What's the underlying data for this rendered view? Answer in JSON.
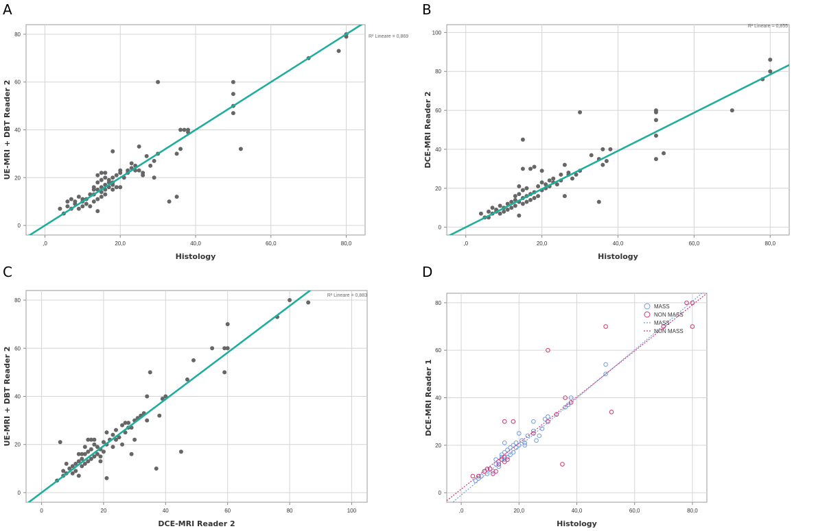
{
  "figure": {
    "panels": [
      "A",
      "B",
      "C",
      "D"
    ]
  },
  "chart_data": [
    {
      "panel": "A",
      "type": "scatter",
      "title": "",
      "xlabel": "Histology",
      "ylabel": "UE-MRI + DBT Reader 2",
      "xlim": [
        -5,
        85
      ],
      "ylim": [
        -4,
        84
      ],
      "xticks": [
        0,
        20,
        40,
        60,
        80
      ],
      "xtick_labels": [
        ",0",
        "20,0",
        "40,0",
        "60,0",
        "80,0"
      ],
      "yticks": [
        0,
        20,
        40,
        60,
        80
      ],
      "ytick_labels": [
        "0",
        "20",
        "40",
        "60",
        "80"
      ],
      "grid": true,
      "r2_label": "R² Lineare = 0,869",
      "marker_color": "#666666",
      "fit": {
        "slope": 1.0,
        "intercept": 0.0,
        "color": "#1fae9c"
      },
      "points": [
        [
          4,
          7
        ],
        [
          5,
          5
        ],
        [
          6,
          8
        ],
        [
          6,
          10
        ],
        [
          7,
          7
        ],
        [
          7,
          11
        ],
        [
          8,
          9
        ],
        [
          8,
          10
        ],
        [
          9,
          7
        ],
        [
          9,
          12
        ],
        [
          10,
          8
        ],
        [
          10,
          10
        ],
        [
          10,
          11
        ],
        [
          11,
          9
        ],
        [
          11,
          11
        ],
        [
          12,
          8
        ],
        [
          12,
          13
        ],
        [
          13,
          10
        ],
        [
          13,
          13
        ],
        [
          13,
          15
        ],
        [
          13,
          16
        ],
        [
          14,
          6
        ],
        [
          14,
          11
        ],
        [
          14,
          15
        ],
        [
          14,
          18
        ],
        [
          14,
          21
        ],
        [
          15,
          12
        ],
        [
          15,
          14
        ],
        [
          15,
          16
        ],
        [
          15,
          19
        ],
        [
          15,
          22
        ],
        [
          16,
          13
        ],
        [
          16,
          15
        ],
        [
          16,
          17
        ],
        [
          16,
          20
        ],
        [
          16,
          22
        ],
        [
          17,
          16
        ],
        [
          17,
          18
        ],
        [
          17,
          19
        ],
        [
          18,
          15
        ],
        [
          18,
          17
        ],
        [
          18,
          18
        ],
        [
          18,
          20
        ],
        [
          18,
          31
        ],
        [
          19,
          16
        ],
        [
          19,
          21
        ],
        [
          20,
          16
        ],
        [
          20,
          22
        ],
        [
          20,
          23
        ],
        [
          21,
          20
        ],
        [
          22,
          22
        ],
        [
          22,
          23
        ],
        [
          23,
          24
        ],
        [
          23,
          26
        ],
        [
          24,
          23
        ],
        [
          24,
          25
        ],
        [
          25,
          23
        ],
        [
          25,
          33
        ],
        [
          26,
          21
        ],
        [
          26,
          22
        ],
        [
          27,
          29
        ],
        [
          28,
          25
        ],
        [
          29,
          20
        ],
        [
          29,
          27
        ],
        [
          30,
          30
        ],
        [
          30,
          60
        ],
        [
          33,
          10
        ],
        [
          35,
          12
        ],
        [
          35,
          30
        ],
        [
          36,
          32
        ],
        [
          36,
          40
        ],
        [
          37,
          40
        ],
        [
          38,
          39
        ],
        [
          38,
          40
        ],
        [
          50,
          47
        ],
        [
          50,
          50
        ],
        [
          50,
          55
        ],
        [
          50,
          60
        ],
        [
          52,
          32
        ],
        [
          70,
          70
        ],
        [
          78,
          73
        ],
        [
          80,
          79
        ],
        [
          80,
          80
        ]
      ]
    },
    {
      "panel": "B",
      "type": "scatter",
      "title": "",
      "xlabel": "Histology",
      "ylabel": "DCE-MRI Reader 2",
      "xlim": [
        -5,
        85
      ],
      "ylim": [
        -4,
        104
      ],
      "xticks": [
        0,
        20,
        40,
        60,
        80
      ],
      "xtick_labels": [
        ",0",
        "20,0",
        "40,0",
        "60,0",
        "80,0"
      ],
      "yticks": [
        0,
        20,
        40,
        60,
        80,
        100
      ],
      "ytick_labels": [
        "0",
        "20",
        "40",
        "60",
        "80",
        "100"
      ],
      "grid": true,
      "r2_label": "R² Lineare = 0,855",
      "marker_color": "#666666",
      "fit": {
        "slope": 0.98,
        "intercept": 0.0,
        "color": "#1fae9c"
      },
      "points": [
        [
          4,
          7
        ],
        [
          5,
          5
        ],
        [
          6,
          5
        ],
        [
          6,
          8
        ],
        [
          7,
          7
        ],
        [
          7,
          10
        ],
        [
          8,
          8
        ],
        [
          8,
          9
        ],
        [
          9,
          7
        ],
        [
          9,
          11
        ],
        [
          10,
          8
        ],
        [
          10,
          10
        ],
        [
          11,
          9
        ],
        [
          11,
          12
        ],
        [
          12,
          10
        ],
        [
          12,
          13
        ],
        [
          13,
          11
        ],
        [
          13,
          14
        ],
        [
          13,
          16
        ],
        [
          14,
          6
        ],
        [
          14,
          13
        ],
        [
          14,
          17
        ],
        [
          14,
          21
        ],
        [
          15,
          12
        ],
        [
          15,
          15
        ],
        [
          15,
          19
        ],
        [
          15,
          30
        ],
        [
          15,
          45
        ],
        [
          16,
          13
        ],
        [
          16,
          16
        ],
        [
          16,
          20
        ],
        [
          17,
          14
        ],
        [
          17,
          17
        ],
        [
          17,
          30
        ],
        [
          18,
          15
        ],
        [
          18,
          18
        ],
        [
          18,
          31
        ],
        [
          19,
          16
        ],
        [
          19,
          21
        ],
        [
          20,
          19
        ],
        [
          20,
          23
        ],
        [
          20,
          29
        ],
        [
          21,
          20
        ],
        [
          21,
          22
        ],
        [
          22,
          21
        ],
        [
          22,
          24
        ],
        [
          23,
          23
        ],
        [
          23,
          25
        ],
        [
          24,
          22
        ],
        [
          25,
          24
        ],
        [
          25,
          27
        ],
        [
          26,
          16
        ],
        [
          26,
          32
        ],
        [
          27,
          27
        ],
        [
          27,
          28
        ],
        [
          28,
          25
        ],
        [
          29,
          27
        ],
        [
          30,
          29
        ],
        [
          30,
          59
        ],
        [
          33,
          37
        ],
        [
          35,
          13
        ],
        [
          35,
          35
        ],
        [
          36,
          32
        ],
        [
          36,
          40
        ],
        [
          37,
          34
        ],
        [
          38,
          40
        ],
        [
          50,
          35
        ],
        [
          50,
          47
        ],
        [
          50,
          55
        ],
        [
          50,
          59
        ],
        [
          50,
          60
        ],
        [
          52,
          38
        ],
        [
          70,
          60
        ],
        [
          78,
          76
        ],
        [
          80,
          80
        ],
        [
          80,
          86
        ]
      ]
    },
    {
      "panel": "C",
      "type": "scatter",
      "title": "",
      "xlabel": "DCE-MRI Reader 2",
      "ylabel": "UE-MRI + DBT Reader 2",
      "xlim": [
        -5,
        105
      ],
      "ylim": [
        -4,
        84
      ],
      "xticks": [
        0,
        20,
        40,
        60,
        80,
        100
      ],
      "xtick_labels": [
        "0",
        "20",
        "40",
        "60",
        "80",
        "100"
      ],
      "yticks": [
        0,
        20,
        40,
        60,
        80
      ],
      "ytick_labels": [
        "0",
        "20",
        "40",
        "60",
        "80"
      ],
      "grid": true,
      "r2_label": "R² Lineare = 0,883",
      "marker_color": "#666666",
      "fit": {
        "slope": 0.97,
        "intercept": 0.0,
        "color": "#1fae9c"
      },
      "points": [
        [
          5,
          5
        ],
        [
          6,
          21
        ],
        [
          7,
          7
        ],
        [
          7,
          9
        ],
        [
          8,
          8
        ],
        [
          8,
          12
        ],
        [
          9,
          10
        ],
        [
          10,
          8
        ],
        [
          10,
          11
        ],
        [
          11,
          9
        ],
        [
          11,
          12
        ],
        [
          12,
          7
        ],
        [
          12,
          13
        ],
        [
          12,
          16
        ],
        [
          13,
          11
        ],
        [
          13,
          14
        ],
        [
          13,
          16
        ],
        [
          14,
          12
        ],
        [
          14,
          16
        ],
        [
          14,
          19
        ],
        [
          15,
          13
        ],
        [
          15,
          17
        ],
        [
          15,
          22
        ],
        [
          16,
          14
        ],
        [
          16,
          18
        ],
        [
          16,
          22
        ],
        [
          17,
          15
        ],
        [
          17,
          20
        ],
        [
          17,
          22
        ],
        [
          18,
          16
        ],
        [
          18,
          19
        ],
        [
          19,
          13
        ],
        [
          19,
          15
        ],
        [
          19,
          18
        ],
        [
          20,
          17
        ],
        [
          20,
          21
        ],
        [
          21,
          6
        ],
        [
          21,
          20
        ],
        [
          21,
          25
        ],
        [
          22,
          22
        ],
        [
          23,
          19
        ],
        [
          23,
          24
        ],
        [
          24,
          22
        ],
        [
          24,
          26
        ],
        [
          25,
          23
        ],
        [
          26,
          20
        ],
        [
          26,
          28
        ],
        [
          27,
          25
        ],
        [
          27,
          29
        ],
        [
          28,
          27
        ],
        [
          28,
          29
        ],
        [
          29,
          16
        ],
        [
          29,
          27
        ],
        [
          30,
          22
        ],
        [
          30,
          30
        ],
        [
          31,
          31
        ],
        [
          32,
          32
        ],
        [
          33,
          33
        ],
        [
          34,
          30
        ],
        [
          34,
          40
        ],
        [
          35,
          50
        ],
        [
          37,
          10
        ],
        [
          38,
          32
        ],
        [
          39,
          39
        ],
        [
          40,
          40
        ],
        [
          45,
          17
        ],
        [
          47,
          47
        ],
        [
          49,
          55
        ],
        [
          55,
          60
        ],
        [
          59,
          50
        ],
        [
          59,
          60
        ],
        [
          60,
          60
        ],
        [
          60,
          70
        ],
        [
          76,
          73
        ],
        [
          80,
          80
        ],
        [
          86,
          79
        ]
      ]
    },
    {
      "panel": "D",
      "type": "scatter",
      "title": "",
      "xlabel": "Histology",
      "ylabel": "DCE-MRI Reader 1",
      "xlim": [
        -5,
        85
      ],
      "ylim": [
        -4,
        84
      ],
      "xticks": [
        0,
        20,
        40,
        60,
        80
      ],
      "xtick_labels": [
        ",0",
        "20,0",
        "40,0",
        "60,0",
        "80,0"
      ],
      "yticks": [
        0,
        20,
        40,
        60,
        80
      ],
      "ytick_labels": [
        "0",
        "20",
        "40",
        "60",
        "80"
      ],
      "grid": true,
      "legend_position": "top-right",
      "series": [
        {
          "name": "MASS",
          "kind": "points",
          "color": "#6f9be0",
          "points": [
            [
              5,
              5
            ],
            [
              6,
              6
            ],
            [
              7,
              7
            ],
            [
              8,
              9
            ],
            [
              9,
              8
            ],
            [
              10,
              10
            ],
            [
              11,
              9
            ],
            [
              12,
              12
            ],
            [
              12,
              14
            ],
            [
              13,
              11
            ],
            [
              13,
              13
            ],
            [
              14,
              15
            ],
            [
              14,
              16
            ],
            [
              15,
              14
            ],
            [
              15,
              17
            ],
            [
              15,
              21
            ],
            [
              16,
              15
            ],
            [
              16,
              18
            ],
            [
              17,
              16
            ],
            [
              17,
              19
            ],
            [
              18,
              17
            ],
            [
              18,
              20
            ],
            [
              19,
              19
            ],
            [
              19,
              21
            ],
            [
              20,
              20
            ],
            [
              20,
              25
            ],
            [
              21,
              22
            ],
            [
              22,
              20
            ],
            [
              22,
              21
            ],
            [
              23,
              24
            ],
            [
              25,
              26
            ],
            [
              25,
              30
            ],
            [
              26,
              22
            ],
            [
              27,
              24
            ],
            [
              28,
              27
            ],
            [
              29,
              31
            ],
            [
              30,
              32
            ],
            [
              36,
              36
            ],
            [
              37,
              37
            ],
            [
              38,
              40
            ],
            [
              50,
              50
            ],
            [
              50,
              54
            ]
          ]
        },
        {
          "name": "NON MASS",
          "kind": "points",
          "color": "#d0336f",
          "points": [
            [
              4,
              7
            ],
            [
              6,
              7
            ],
            [
              8,
              9
            ],
            [
              9,
              10
            ],
            [
              10,
              10
            ],
            [
              11,
              8
            ],
            [
              12,
              9
            ],
            [
              13,
              12
            ],
            [
              14,
              14
            ],
            [
              15,
              13
            ],
            [
              15,
              15
            ],
            [
              15,
              30
            ],
            [
              16,
              14
            ],
            [
              18,
              30
            ],
            [
              25,
              25
            ],
            [
              30,
              30
            ],
            [
              30,
              60
            ],
            [
              33,
              33
            ],
            [
              35,
              12
            ],
            [
              36,
              40
            ],
            [
              38,
              38
            ],
            [
              50,
              70
            ],
            [
              52,
              34
            ],
            [
              70,
              70
            ],
            [
              78,
              80
            ],
            [
              80,
              70
            ],
            [
              80,
              80
            ]
          ]
        },
        {
          "name": "MASS",
          "kind": "fit",
          "color": "#6f9be0",
          "slope": 1.02,
          "intercept": -1.0
        },
        {
          "name": "NON MASS",
          "kind": "fit",
          "color": "#d0336f",
          "slope": 0.97,
          "intercept": 1.5
        }
      ]
    }
  ]
}
